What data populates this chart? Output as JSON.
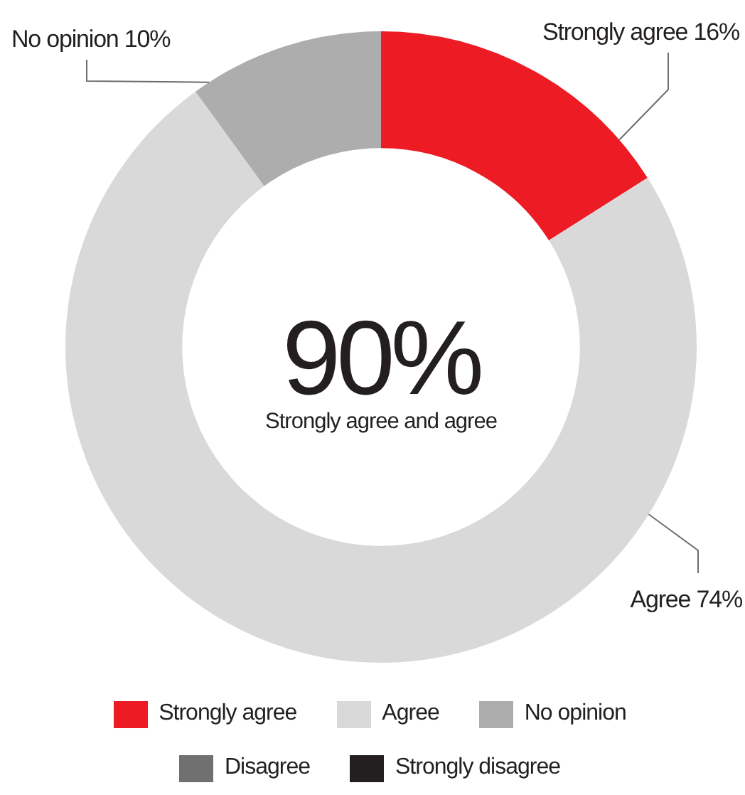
{
  "chart_data": {
    "type": "donut",
    "categories": [
      "Strongly agree",
      "Agree",
      "No opinion",
      "Disagree",
      "Strongly disagree"
    ],
    "values": [
      16,
      74,
      10,
      0,
      0
    ],
    "colors": [
      "#ed1c24",
      "#d9d9d9",
      "#adadad",
      "#707070",
      "#231f20"
    ],
    "value_labels": [
      "16%",
      "74%",
      "10%",
      null,
      null
    ],
    "annotations": [
      "90%",
      "Strongly agree and agree"
    ],
    "legend": "bottom"
  }
}
